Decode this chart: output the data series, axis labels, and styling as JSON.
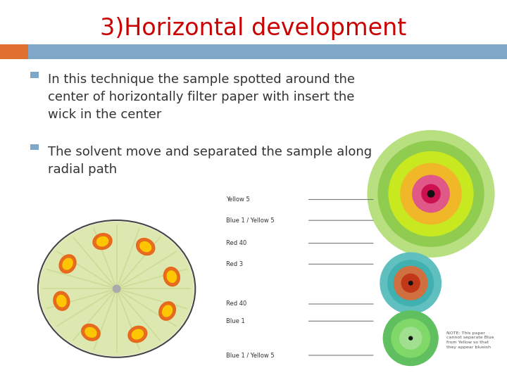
{
  "title": "3)Horizontal development",
  "title_color": "#cc0000",
  "title_fontsize": 24,
  "accent_bar_color": "#7fa8c8",
  "accent_square_color": "#e07030",
  "bullet_points": [
    "In this technique the sample spotted around the\ncenter of horizontally filter paper with insert the\nwick in the center",
    "The solvent move and separated the sample along\nradial path"
  ],
  "bullet_color": "#333333",
  "bullet_fontsize": 13,
  "bullet_square_color": "#7fa8c8",
  "bg_color": "#ffffff",
  "left_img": {
    "bg": "#111111",
    "disc_color": "#dde8b0",
    "spoke_color": "#c8d890",
    "blob_outer": "#e86010",
    "blob_inner": "#ffcc00",
    "blob_angles_pi": [
      0.08,
      0.33,
      0.58,
      0.83,
      1.08,
      1.35,
      1.62,
      1.85
    ],
    "blob_r": 0.34,
    "center_color": "#aaaaaa"
  },
  "right_top": {
    "colors": [
      "#b8e080",
      "#90cc50",
      "#c8e820",
      "#f0b828",
      "#e05888",
      "#cc1050"
    ],
    "radii": [
      0.48,
      0.4,
      0.32,
      0.23,
      0.14,
      0.07
    ]
  },
  "right_mid": {
    "colors": [
      "#60c0c0",
      "#40b0b0",
      "#d07040",
      "#c03818"
    ],
    "radii": [
      0.4,
      0.3,
      0.22,
      0.12
    ]
  },
  "right_bot": {
    "colors": [
      "#60c060",
      "#80d868",
      "#a0e090"
    ],
    "radii": [
      0.4,
      0.28,
      0.16
    ]
  },
  "labels_top": [
    [
      "Yellow 5",
      0.91
    ],
    [
      "Blue 1 / Yellow 5",
      0.8
    ],
    [
      "Red 40",
      0.68
    ],
    [
      "Red 3",
      0.57
    ]
  ],
  "labels_mid": [
    [
      "Red 40",
      0.36
    ],
    [
      "Blue 1",
      0.27
    ]
  ],
  "labels_bot": [
    [
      "Blue 1 / Yellow 5",
      0.09
    ]
  ],
  "note_text": "NOTE: This paper\ncannot separate Blue\nfrom Yellow so that\nthey appear blueish",
  "small_fs": 6,
  "dot_color": "#111111"
}
